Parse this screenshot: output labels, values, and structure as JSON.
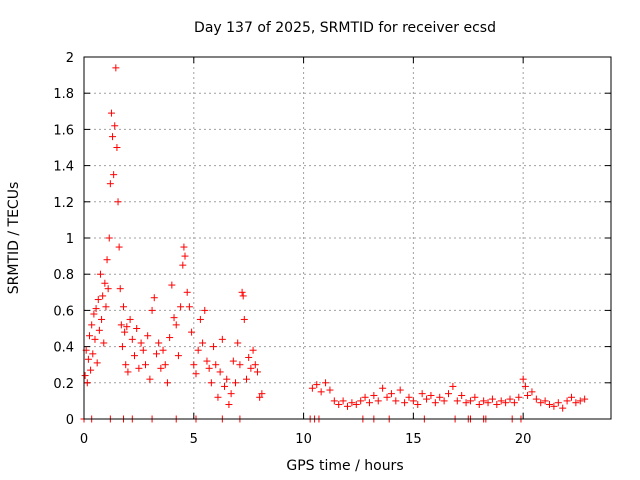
{
  "chart_data": {
    "type": "scatter",
    "title": "Day 137 of 2025, SRMTID for receiver ecsd",
    "xlabel": "GPS time / hours",
    "ylabel": "SRMTID / TECUs",
    "xlim": [
      0,
      24
    ],
    "ylim": [
      0,
      2
    ],
    "xticks": [
      0,
      5,
      10,
      15,
      20
    ],
    "xtick_labels": [
      "0",
      "5",
      "10",
      "15",
      "20"
    ],
    "yticks": [
      0,
      0.2,
      0.4,
      0.6,
      0.8,
      1,
      1.2,
      1.4,
      1.6,
      1.8,
      2
    ],
    "ytick_labels": [
      "0",
      "0.2",
      "0.4",
      "0.6",
      "0.8",
      "1",
      "1.2",
      "1.4",
      "1.6",
      "1.8",
      "2"
    ],
    "grid": true,
    "marker": "+",
    "color": "#ff0000",
    "series": [
      {
        "name": "SRMTID",
        "points": [
          [
            0.05,
            0.24
          ],
          [
            0.1,
            0.38
          ],
          [
            0.15,
            0.2
          ],
          [
            0.2,
            0.33
          ],
          [
            0.25,
            0.46
          ],
          [
            0.3,
            0.27
          ],
          [
            0.35,
            0.52
          ],
          [
            0.4,
            0.36
          ],
          [
            0.45,
            0.58
          ],
          [
            0.5,
            0.44
          ],
          [
            0.55,
            0.61
          ],
          [
            0.6,
            0.31
          ],
          [
            0.65,
            0.66
          ],
          [
            0.7,
            0.49
          ],
          [
            0.75,
            0.8
          ],
          [
            0.8,
            0.55
          ],
          [
            0.85,
            0.68
          ],
          [
            0.9,
            0.42
          ],
          [
            0.95,
            0.75
          ],
          [
            1.0,
            0.62
          ],
          [
            1.05,
            0.88
          ],
          [
            1.1,
            0.72
          ],
          [
            1.15,
            1.0
          ],
          [
            1.2,
            1.3
          ],
          [
            1.25,
            1.69
          ],
          [
            1.3,
            1.56
          ],
          [
            1.35,
            1.35
          ],
          [
            1.4,
            1.62
          ],
          [
            1.45,
            1.94
          ],
          [
            1.5,
            1.5
          ],
          [
            1.55,
            1.2
          ],
          [
            1.6,
            0.95
          ],
          [
            1.65,
            0.72
          ],
          [
            1.7,
            0.52
          ],
          [
            1.75,
            0.4
          ],
          [
            1.8,
            0.62
          ],
          [
            1.85,
            0.48
          ],
          [
            1.9,
            0.3
          ],
          [
            1.95,
            0.51
          ],
          [
            2.0,
            0.26
          ],
          [
            2.1,
            0.55
          ],
          [
            2.2,
            0.44
          ],
          [
            2.3,
            0.35
          ],
          [
            2.4,
            0.5
          ],
          [
            2.5,
            0.28
          ],
          [
            2.6,
            0.42
          ],
          [
            2.7,
            0.38
          ],
          [
            2.8,
            0.3
          ],
          [
            2.9,
            0.46
          ],
          [
            3.0,
            0.22
          ],
          [
            3.1,
            0.6
          ],
          [
            3.2,
            0.67
          ],
          [
            3.3,
            0.36
          ],
          [
            3.4,
            0.42
          ],
          [
            3.5,
            0.28
          ],
          [
            3.6,
            0.38
          ],
          [
            3.7,
            0.3
          ],
          [
            3.8,
            0.2
          ],
          [
            3.9,
            0.45
          ],
          [
            4.0,
            0.74
          ],
          [
            4.1,
            0.56
          ],
          [
            4.2,
            0.52
          ],
          [
            4.3,
            0.35
          ],
          [
            4.4,
            0.62
          ],
          [
            4.5,
            0.85
          ],
          [
            4.55,
            0.95
          ],
          [
            4.6,
            0.9
          ],
          [
            4.7,
            0.7
          ],
          [
            4.8,
            0.62
          ],
          [
            4.9,
            0.48
          ],
          [
            5.0,
            0.3
          ],
          [
            5.1,
            0.25
          ],
          [
            5.2,
            0.38
          ],
          [
            5.3,
            0.55
          ],
          [
            5.4,
            0.42
          ],
          [
            5.5,
            0.6
          ],
          [
            5.6,
            0.32
          ],
          [
            5.7,
            0.28
          ],
          [
            5.8,
            0.2
          ],
          [
            5.9,
            0.4
          ],
          [
            6.0,
            0.3
          ],
          [
            6.1,
            0.12
          ],
          [
            6.2,
            0.26
          ],
          [
            6.3,
            0.44
          ],
          [
            6.4,
            0.18
          ],
          [
            6.5,
            0.22
          ],
          [
            6.6,
            0.08
          ],
          [
            6.7,
            0.14
          ],
          [
            6.8,
            0.32
          ],
          [
            6.9,
            0.2
          ],
          [
            7.0,
            0.42
          ],
          [
            7.1,
            0.3
          ],
          [
            7.2,
            0.7
          ],
          [
            7.25,
            0.68
          ],
          [
            7.3,
            0.55
          ],
          [
            7.4,
            0.22
          ],
          [
            7.5,
            0.34
          ],
          [
            7.6,
            0.28
          ],
          [
            7.7,
            0.38
          ],
          [
            7.8,
            0.3
          ],
          [
            7.9,
            0.26
          ],
          [
            8.0,
            0.12
          ],
          [
            8.1,
            0.14
          ],
          [
            10.4,
            0.17
          ],
          [
            10.6,
            0.19
          ],
          [
            10.8,
            0.15
          ],
          [
            11.0,
            0.2
          ],
          [
            11.2,
            0.16
          ],
          [
            11.4,
            0.1
          ],
          [
            11.6,
            0.08
          ],
          [
            11.8,
            0.1
          ],
          [
            12.0,
            0.07
          ],
          [
            12.2,
            0.09
          ],
          [
            12.4,
            0.08
          ],
          [
            12.6,
            0.1
          ],
          [
            12.8,
            0.12
          ],
          [
            13.0,
            0.09
          ],
          [
            13.2,
            0.13
          ],
          [
            13.4,
            0.1
          ],
          [
            13.6,
            0.17
          ],
          [
            13.8,
            0.12
          ],
          [
            14.0,
            0.14
          ],
          [
            14.2,
            0.1
          ],
          [
            14.4,
            0.16
          ],
          [
            14.6,
            0.09
          ],
          [
            14.8,
            0.12
          ],
          [
            15.0,
            0.1
          ],
          [
            15.2,
            0.08
          ],
          [
            15.4,
            0.14
          ],
          [
            15.6,
            0.11
          ],
          [
            15.8,
            0.13
          ],
          [
            16.0,
            0.09
          ],
          [
            16.2,
            0.12
          ],
          [
            16.4,
            0.1
          ],
          [
            16.6,
            0.14
          ],
          [
            16.8,
            0.18
          ],
          [
            17.0,
            0.1
          ],
          [
            17.2,
            0.13
          ],
          [
            17.4,
            0.09
          ],
          [
            17.6,
            0.1
          ],
          [
            17.8,
            0.12
          ],
          [
            18.0,
            0.08
          ],
          [
            18.2,
            0.1
          ],
          [
            18.4,
            0.09
          ],
          [
            18.6,
            0.11
          ],
          [
            18.8,
            0.08
          ],
          [
            19.0,
            0.1
          ],
          [
            19.2,
            0.09
          ],
          [
            19.4,
            0.11
          ],
          [
            19.6,
            0.09
          ],
          [
            19.8,
            0.12
          ],
          [
            20.0,
            0.22
          ],
          [
            20.1,
            0.18
          ],
          [
            20.2,
            0.13
          ],
          [
            20.4,
            0.15
          ],
          [
            20.6,
            0.11
          ],
          [
            20.8,
            0.09
          ],
          [
            21.0,
            0.1
          ],
          [
            21.2,
            0.08
          ],
          [
            21.4,
            0.07
          ],
          [
            21.6,
            0.09
          ],
          [
            21.8,
            0.06
          ],
          [
            22.0,
            0.1
          ],
          [
            22.2,
            0.12
          ],
          [
            22.4,
            0.09
          ],
          [
            22.6,
            0.1
          ],
          [
            22.8,
            0.11
          ],
          [
            0.0,
            0.0
          ],
          [
            0.35,
            0.0
          ],
          [
            1.2,
            0.0
          ],
          [
            1.8,
            0.0
          ],
          [
            2.2,
            0.0
          ],
          [
            3.1,
            0.0
          ],
          [
            4.2,
            0.0
          ],
          [
            5.1,
            0.0
          ],
          [
            6.3,
            0.0
          ],
          [
            7.1,
            0.0
          ],
          [
            10.3,
            0.0
          ],
          [
            10.5,
            0.0
          ],
          [
            10.7,
            0.0
          ],
          [
            12.7,
            0.0
          ],
          [
            13.2,
            0.0
          ],
          [
            13.9,
            0.0
          ],
          [
            15.5,
            0.0
          ],
          [
            16.9,
            0.0
          ],
          [
            17.5,
            0.0
          ],
          [
            17.6,
            0.0
          ],
          [
            18.2,
            0.0
          ],
          [
            18.3,
            0.0
          ],
          [
            19.5,
            0.0
          ],
          [
            19.9,
            0.0
          ]
        ]
      }
    ]
  }
}
